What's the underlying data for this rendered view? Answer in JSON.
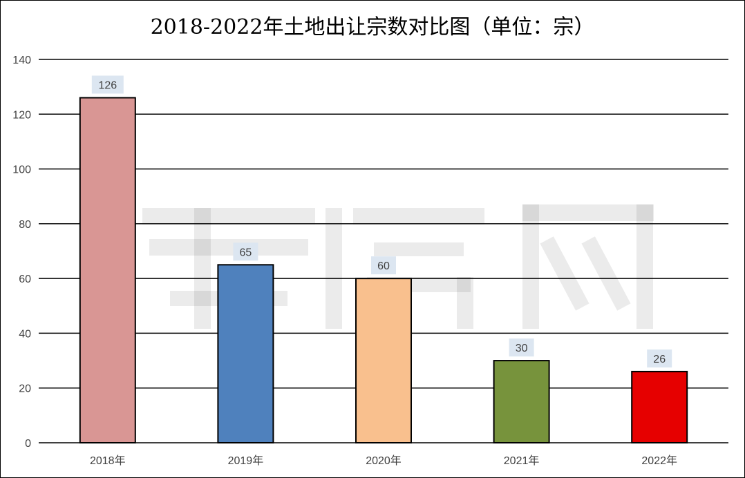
{
  "chart_data": {
    "type": "bar",
    "title": "2018-2022年土地出让宗数对比图（单位：宗）",
    "categories": [
      "2018年",
      "2019年",
      "2020年",
      "2021年",
      "2022年"
    ],
    "values": [
      126,
      65,
      60,
      30,
      26
    ],
    "bar_colors": [
      "#d99694",
      "#4f81bd",
      "#f9c08e",
      "#77933c",
      "#e60000"
    ],
    "ylim": [
      0,
      140
    ],
    "yticks": [
      0,
      20,
      40,
      60,
      80,
      100,
      120,
      140
    ],
    "grid": true,
    "data_labels": true,
    "xlabel": "",
    "ylabel": ""
  }
}
